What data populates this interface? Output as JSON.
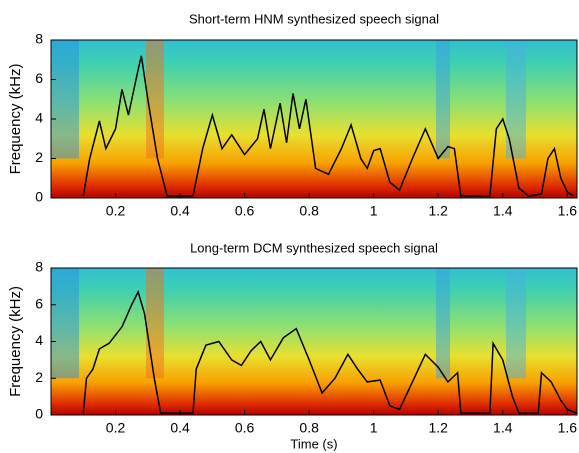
{
  "chart_data": [
    {
      "type": "line",
      "title": "Short-term HNM synthesized speech signal",
      "y_label": "Frequency (kHz)",
      "xlim": [
        0,
        1.63
      ],
      "ylim": [
        0,
        8
      ],
      "xticks": [
        0.2,
        0.4,
        0.6,
        0.8,
        1,
        1.2,
        1.4,
        1.6
      ],
      "yticks": [
        0,
        2,
        4,
        6,
        8
      ],
      "series": [
        {
          "color": "#000000",
          "x": [
            0.1,
            0.12,
            0.15,
            0.17,
            0.2,
            0.22,
            0.24,
            0.27,
            0.28,
            0.3,
            0.33,
            0.36,
            0.44,
            0.47,
            0.5,
            0.53,
            0.56,
            0.6,
            0.64,
            0.66,
            0.68,
            0.71,
            0.73,
            0.75,
            0.77,
            0.79,
            0.82,
            0.86,
            0.9,
            0.93,
            0.96,
            0.98,
            1.0,
            1.02,
            1.05,
            1.08,
            1.12,
            1.16,
            1.2,
            1.23,
            1.25,
            1.27,
            1.36,
            1.38,
            1.4,
            1.42,
            1.45,
            1.48,
            1.52,
            1.54,
            1.56,
            1.58,
            1.6,
            1.62
          ],
          "values": [
            0.1,
            2,
            3.9,
            2.5,
            3.5,
            5.5,
            4.2,
            6.5,
            7.2,
            5,
            2,
            0.1,
            0.1,
            2.5,
            4.2,
            2.5,
            3.2,
            2.2,
            3,
            4.5,
            2.5,
            4.8,
            2.8,
            5.3,
            3.5,
            5,
            1.5,
            1.2,
            2.5,
            3.7,
            2,
            1.5,
            2.4,
            2.5,
            0.8,
            0.4,
            2,
            3.5,
            2,
            2.6,
            2.5,
            0.1,
            0.1,
            3.5,
            4,
            3,
            0.5,
            0.1,
            0.2,
            2,
            2.5,
            1,
            0.3,
            0.1
          ]
        }
      ]
    },
    {
      "type": "line",
      "title": "Long-term DCM synthesized speech signal",
      "y_label": "Frequency (kHz)",
      "x_label": "Time (s)",
      "xlim": [
        0,
        1.63
      ],
      "ylim": [
        0,
        8
      ],
      "xticks": [
        0.2,
        0.4,
        0.6,
        0.8,
        1,
        1.2,
        1.4,
        1.6
      ],
      "yticks": [
        0,
        2,
        4,
        6,
        8
      ],
      "series": [
        {
          "color": "#000000",
          "x": [
            0.1,
            0.11,
            0.13,
            0.15,
            0.18,
            0.22,
            0.25,
            0.27,
            0.29,
            0.32,
            0.34,
            0.44,
            0.45,
            0.48,
            0.52,
            0.56,
            0.59,
            0.62,
            0.65,
            0.68,
            0.72,
            0.76,
            0.8,
            0.84,
            0.88,
            0.92,
            0.95,
            0.98,
            1.02,
            1.05,
            1.08,
            1.12,
            1.16,
            1.2,
            1.23,
            1.26,
            1.27,
            1.36,
            1.37,
            1.4,
            1.43,
            1.45,
            1.51,
            1.52,
            1.55,
            1.58,
            1.6,
            1.63
          ],
          "values": [
            0.1,
            2,
            2.5,
            3.6,
            3.9,
            4.8,
            6,
            6.7,
            5.5,
            2,
            0.1,
            0.1,
            2.5,
            3.8,
            4,
            3,
            2.7,
            3.5,
            4,
            3,
            4.2,
            4.7,
            3,
            1.2,
            2,
            3.3,
            2.5,
            1.8,
            1.9,
            0.5,
            0.3,
            1.8,
            3.3,
            2.6,
            1.8,
            2.3,
            0.1,
            0.1,
            3.9,
            3,
            1,
            0.1,
            0.1,
            2.3,
            1.8,
            0.8,
            0.3,
            0.1
          ]
        }
      ]
    }
  ]
}
